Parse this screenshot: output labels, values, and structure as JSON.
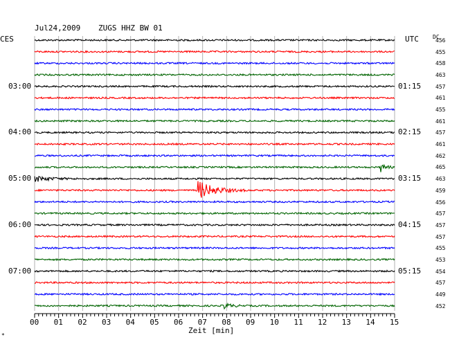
{
  "header": {
    "date": "Jul24,2009",
    "station": "ZUGS HHZ BW 01",
    "left_tz": "CES",
    "right_tz": "UTC",
    "dc_label": "DC"
  },
  "footer": {
    "xlabel": "Zeit [min]",
    "corner_mark": "*"
  },
  "colors": {
    "black": "#000000",
    "red": "#ff0000",
    "blue": "#0000ff",
    "green": "#006400",
    "grid": "#b0b0b0"
  },
  "chart_data": {
    "type": "line",
    "title": "Jul24,2009  ZUGS HHZ BW 01",
    "xlabel": "Zeit [min]",
    "xlim": [
      0,
      15
    ],
    "x_ticks": [
      "00",
      "01",
      "02",
      "03",
      "04",
      "05",
      "06",
      "07",
      "08",
      "09",
      "10",
      "11",
      "12",
      "13",
      "14",
      "15"
    ],
    "left_time_labels": [
      {
        "row": 4,
        "text": "03:00"
      },
      {
        "row": 8,
        "text": "04:00"
      },
      {
        "row": 12,
        "text": "05:00"
      },
      {
        "row": 16,
        "text": "06:00"
      },
      {
        "row": 20,
        "text": "07:00"
      }
    ],
    "right_time_labels": [
      {
        "row": 4,
        "text": "01:15"
      },
      {
        "row": 8,
        "text": "02:15"
      },
      {
        "row": 12,
        "text": "03:15"
      },
      {
        "row": 16,
        "text": "04:15"
      },
      {
        "row": 20,
        "text": "05:15"
      }
    ],
    "rows": [
      {
        "color": "black",
        "dc": "456"
      },
      {
        "color": "red",
        "dc": "455"
      },
      {
        "color": "blue",
        "dc": "458"
      },
      {
        "color": "green",
        "dc": "463"
      },
      {
        "color": "black",
        "dc": "457"
      },
      {
        "color": "red",
        "dc": "461"
      },
      {
        "color": "blue",
        "dc": "455"
      },
      {
        "color": "green",
        "dc": "461"
      },
      {
        "color": "black",
        "dc": "457"
      },
      {
        "color": "red",
        "dc": "461"
      },
      {
        "color": "blue",
        "dc": "462"
      },
      {
        "color": "green",
        "dc": "465",
        "event": {
          "start": 14.4,
          "end": 15.0,
          "amp": 7
        }
      },
      {
        "color": "black",
        "dc": "463",
        "event": {
          "start": 0.0,
          "end": 1.8,
          "amp": 4
        }
      },
      {
        "color": "red",
        "dc": "459",
        "event": {
          "start": 6.8,
          "end": 8.8,
          "amp": 14
        }
      },
      {
        "color": "blue",
        "dc": "456"
      },
      {
        "color": "green",
        "dc": "457"
      },
      {
        "color": "black",
        "dc": "457"
      },
      {
        "color": "red",
        "dc": "457"
      },
      {
        "color": "blue",
        "dc": "455"
      },
      {
        "color": "green",
        "dc": "453"
      },
      {
        "color": "black",
        "dc": "454"
      },
      {
        "color": "red",
        "dc": "457"
      },
      {
        "color": "blue",
        "dc": "449"
      },
      {
        "color": "green",
        "dc": "452",
        "event": {
          "start": 7.9,
          "end": 8.8,
          "amp": 4
        }
      }
    ]
  }
}
